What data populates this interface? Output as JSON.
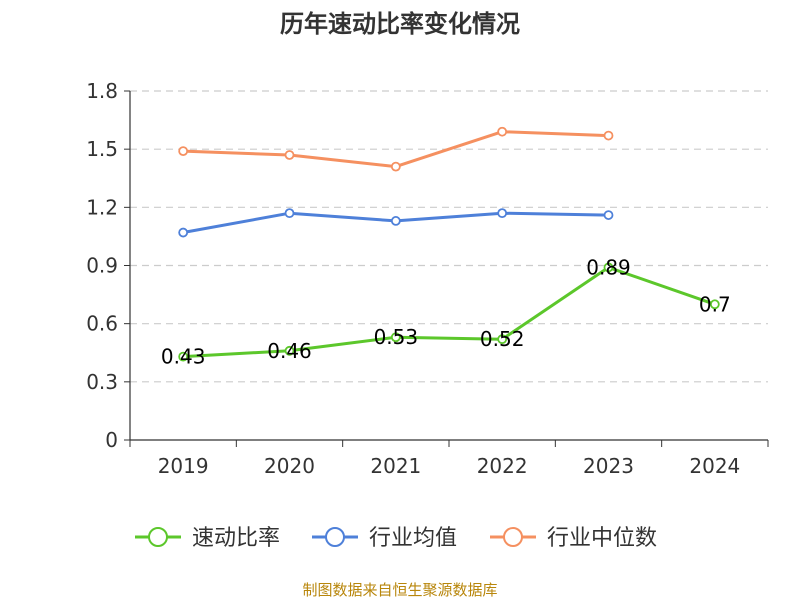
{
  "chart_data": {
    "type": "line",
    "title": "历年速动比率变化情况",
    "categories": [
      "2019",
      "2020",
      "2021",
      "2022",
      "2023",
      "2024"
    ],
    "ylim": [
      0,
      1.8
    ],
    "yticks": [
      "0",
      "0.3",
      "0.6",
      "0.9",
      "1.2",
      "1.5",
      "1.8"
    ],
    "grid": true,
    "legend_position": "bottom",
    "series": [
      {
        "name": "速动比率",
        "color": "#5cc72b",
        "values": [
          0.43,
          0.46,
          0.53,
          0.52,
          0.89,
          0.7
        ],
        "labels": [
          "0.43",
          "0.46",
          "0.53",
          "0.52",
          "0.89",
          "0.7"
        ]
      },
      {
        "name": "行业均值",
        "color": "#4e80d9",
        "values": [
          1.07,
          1.17,
          1.13,
          1.17,
          1.16,
          null
        ]
      },
      {
        "name": "行业中位数",
        "color": "#f59060",
        "values": [
          1.49,
          1.47,
          1.41,
          1.59,
          1.57,
          null
        ]
      }
    ],
    "source": "制图数据来自恒生聚源数据库"
  }
}
